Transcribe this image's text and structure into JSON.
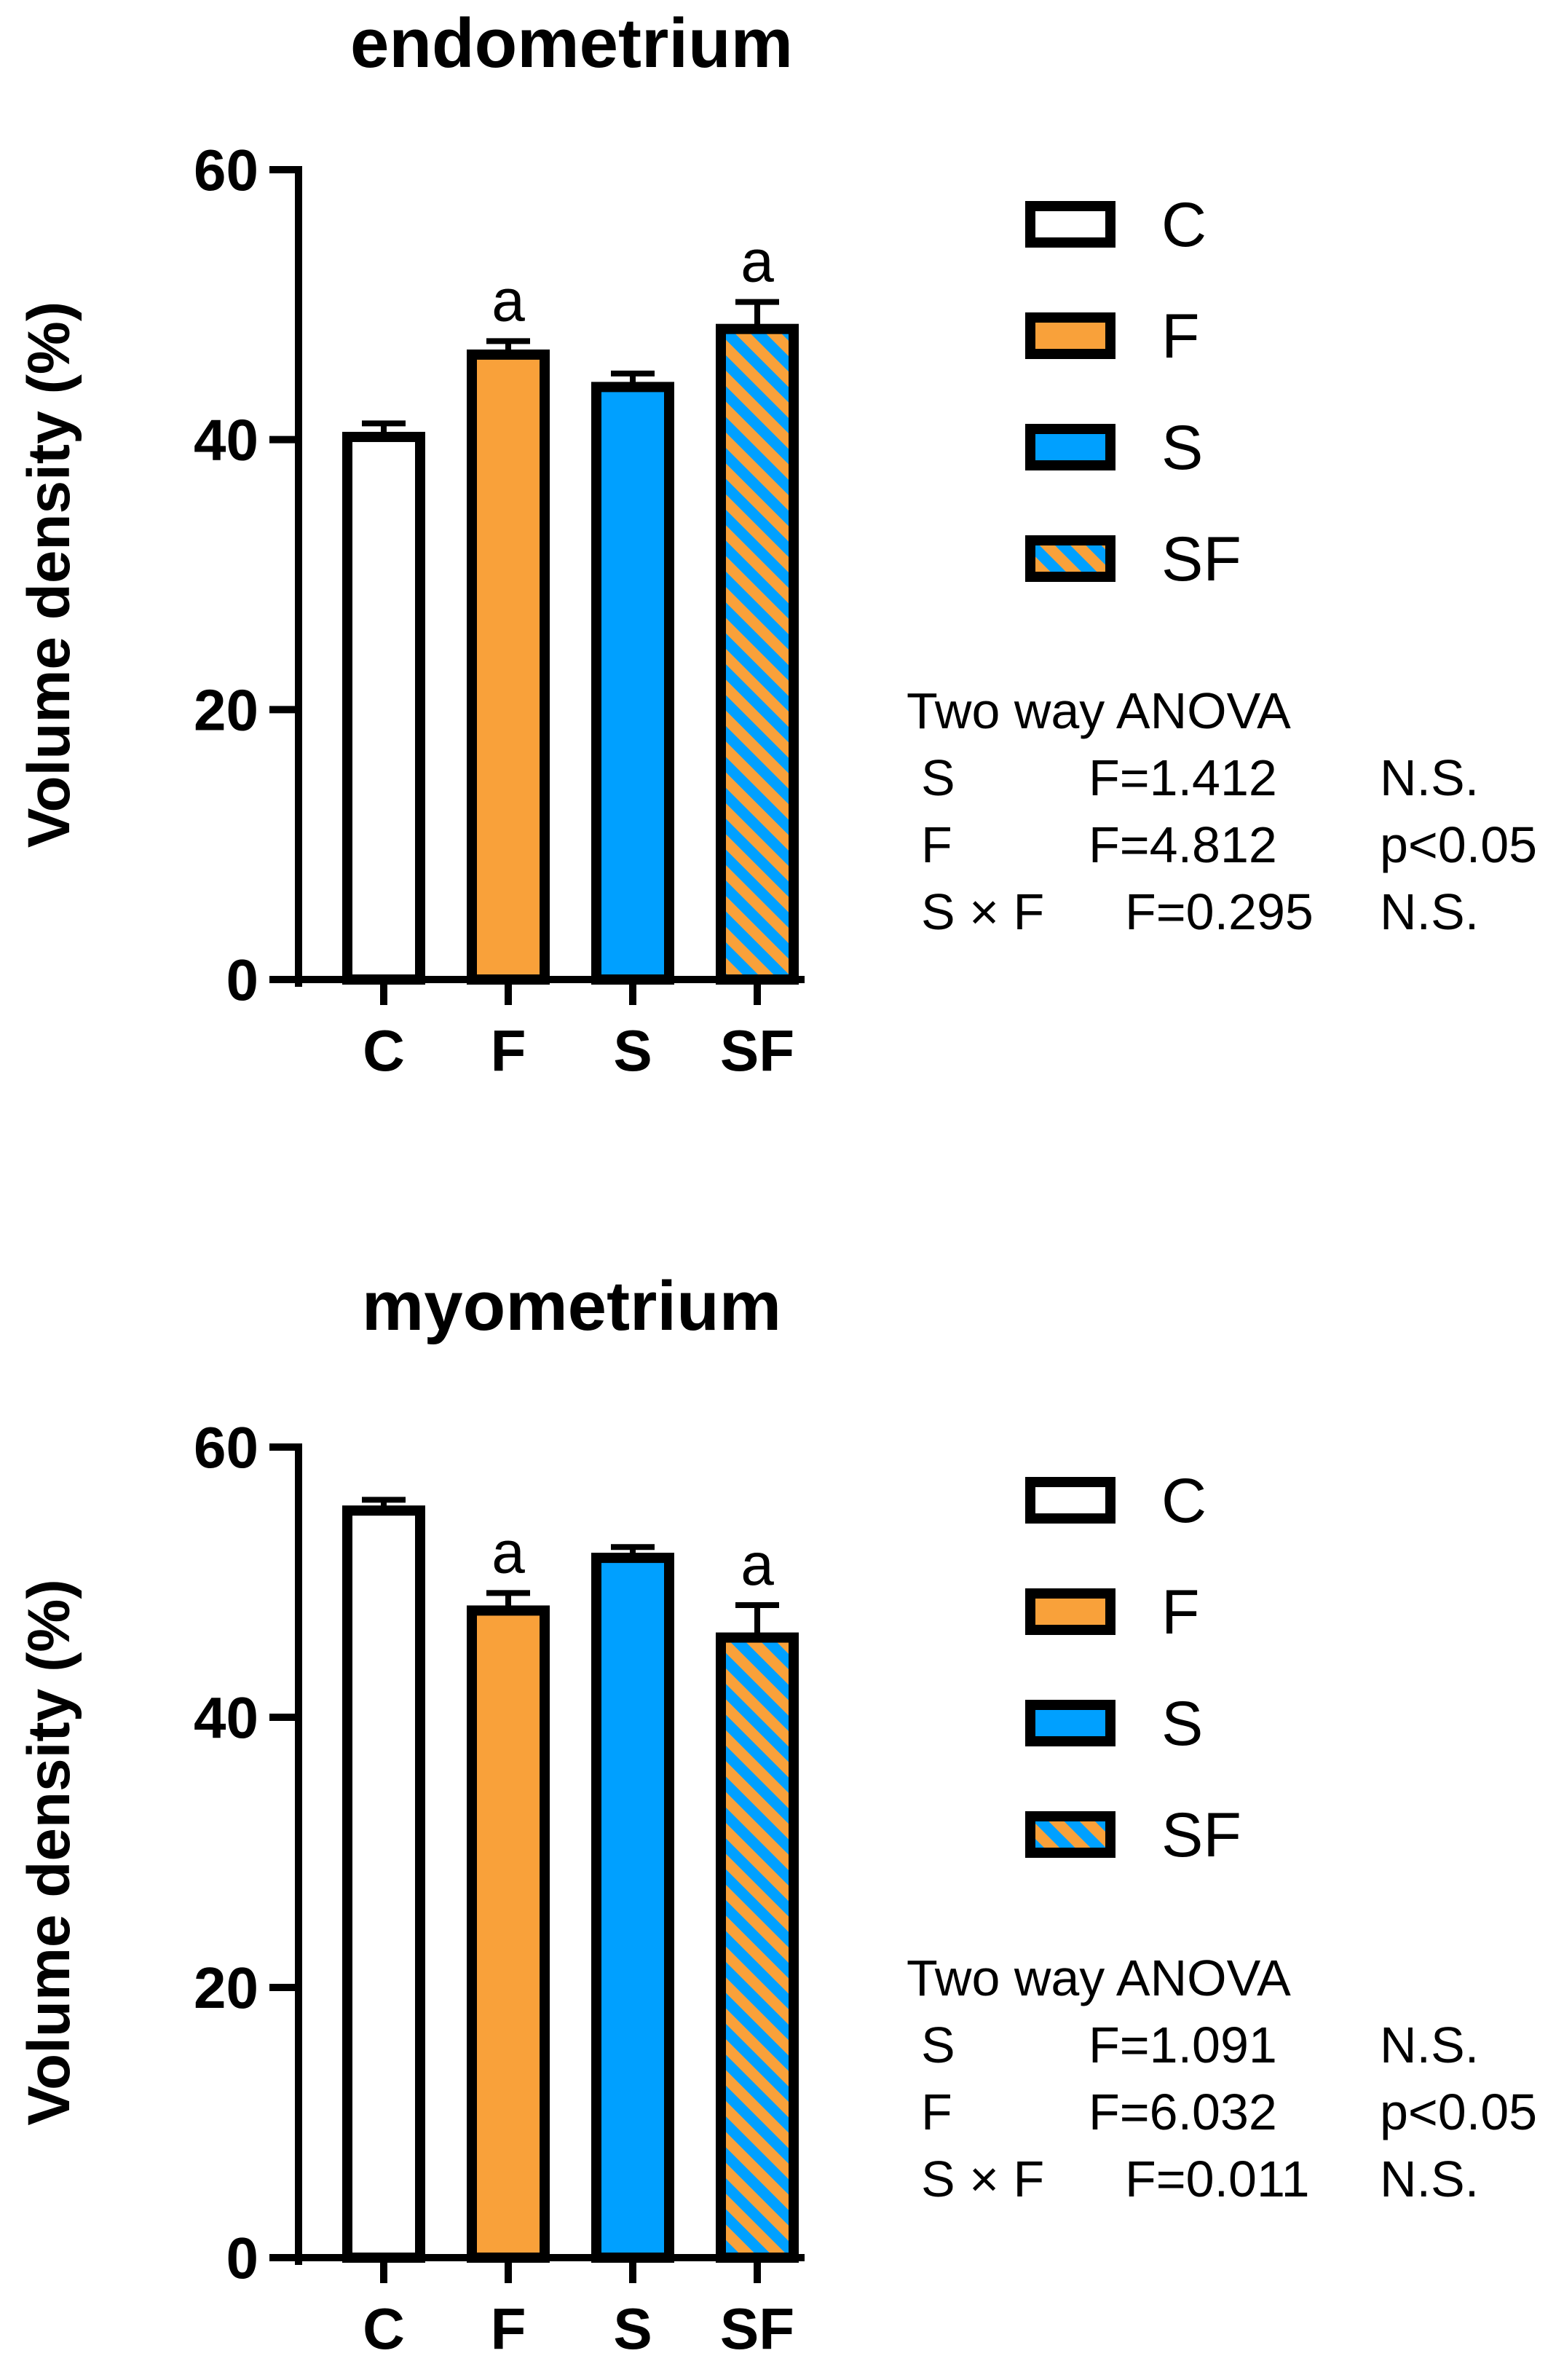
{
  "chart_data": [
    {
      "type": "bar",
      "title": "endometrium",
      "ylabel": "Volume density (%)",
      "xlabel": "",
      "ylim": [
        0,
        60
      ],
      "yticks": [
        0,
        20,
        40,
        60
      ],
      "categories": [
        "C",
        "F",
        "S",
        "SF"
      ],
      "values": [
        40.2,
        46.3,
        43.9,
        48.2
      ],
      "errors": [
        1.0,
        1.0,
        1.0,
        2.0
      ],
      "annotations": [
        "",
        "a",
        "",
        "a"
      ],
      "legend": {
        "placement": "right",
        "entries": [
          "C",
          "F",
          "S",
          "SF"
        ]
      },
      "stats": {
        "title": "Two way ANOVA",
        "rows": [
          {
            "factor": "S",
            "stat": "F=1.412",
            "sig": "N.S."
          },
          {
            "factor": "F",
            "stat": "F=4.812",
            "sig": "p<0.05"
          },
          {
            "factor": "S × F",
            "stat": "F=0.295",
            "sig": "N.S."
          }
        ]
      }
    },
    {
      "type": "bar",
      "title": "myometrium",
      "ylabel": "Volume density (%)",
      "xlabel": "",
      "ylim": [
        0,
        60
      ],
      "yticks": [
        0,
        20,
        40,
        60
      ],
      "categories": [
        "C",
        "F",
        "S",
        "SF"
      ],
      "values": [
        55.3,
        47.9,
        51.8,
        45.9
      ],
      "errors": [
        0.8,
        1.3,
        0.8,
        2.4
      ],
      "annotations": [
        "",
        "a",
        "",
        "a"
      ],
      "legend": {
        "placement": "right",
        "entries": [
          "C",
          "F",
          "S",
          "SF"
        ]
      },
      "stats": {
        "title": "Two way ANOVA",
        "rows": [
          {
            "factor": "S",
            "stat": "F=1.091",
            "sig": "N.S."
          },
          {
            "factor": "F",
            "stat": "F=6.032",
            "sig": "p<0.05"
          },
          {
            "factor": "S × F",
            "stat": "F=0.011",
            "sig": "N.S."
          }
        ]
      }
    }
  ],
  "colors": {
    "C": "#ffffff",
    "F": "#f9a13a",
    "S": "#00a0ff",
    "SF_stripe_a": "#f9a13a",
    "SF_stripe_b": "#00a0ff",
    "outline": "#000000"
  }
}
